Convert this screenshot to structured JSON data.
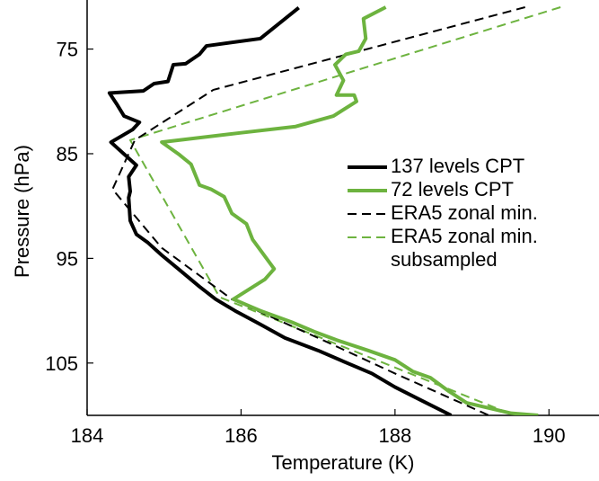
{
  "chart_data": {
    "type": "line",
    "x_label": "Temperature (K)",
    "y_label": "Pressure (hPa)",
    "xlim": [
      184,
      190.65
    ],
    "xticks": [
      184,
      186,
      188,
      190
    ],
    "ylim": [
      71,
      110
    ],
    "yticks": [
      75,
      85,
      95,
      105
    ],
    "y_inverted": true,
    "series": [
      {
        "name": "137 levels CPT",
        "color": "#000000",
        "style": "solid",
        "x": [
          186.75,
          186.25,
          185.55,
          185.46,
          185.28,
          185.12,
          185.05,
          184.87,
          184.73,
          184.29,
          184.38,
          184.48,
          184.68,
          184.59,
          184.31,
          184.64,
          184.54,
          184.56,
          184.54,
          184.56,
          184.64,
          184.79,
          184.97,
          185.2,
          185.46,
          185.67,
          185.92,
          186.25,
          186.57,
          187.0,
          187.41,
          187.7,
          188.0,
          188.35,
          188.73
        ],
        "y": [
          71.05,
          74.0,
          74.7,
          75.5,
          76.4,
          76.5,
          78.1,
          78.3,
          79.0,
          79.2,
          80.2,
          81.4,
          82.0,
          82.7,
          83.9,
          86.1,
          87.2,
          88.6,
          89.2,
          91.4,
          92.7,
          93.5,
          94.7,
          96.1,
          97.7,
          98.9,
          100.0,
          101.3,
          102.6,
          103.8,
          105.1,
          106.0,
          107.3,
          108.6,
          110.0
        ]
      },
      {
        "name": "72 levels CPT",
        "color": "#6db33f",
        "style": "solid",
        "x": [
          187.88,
          187.59,
          187.62,
          187.53,
          187.36,
          187.22,
          187.33,
          187.24,
          187.47,
          187.5,
          187.2,
          186.71,
          186.0,
          184.97,
          185.2,
          185.35,
          185.46,
          185.61,
          185.78,
          185.88,
          186.07,
          186.15,
          186.31,
          186.43,
          186.31,
          185.9,
          186.25,
          186.66,
          186.95,
          187.24,
          187.65,
          188.0,
          188.23,
          188.46,
          188.7,
          188.93,
          189.51,
          189.86
        ],
        "y": [
          71.0,
          72.1,
          74.0,
          75.2,
          75.5,
          76.5,
          78.0,
          79.4,
          79.4,
          80.0,
          81.4,
          82.4,
          83.0,
          83.9,
          85.1,
          86.0,
          88.0,
          88.4,
          89.1,
          90.7,
          91.7,
          93.2,
          94.8,
          96.0,
          97.0,
          98.9,
          100.0,
          101.1,
          102.0,
          102.8,
          103.8,
          104.7,
          105.8,
          106.4,
          107.7,
          108.8,
          109.8,
          110.0
        ]
      },
      {
        "name": "ERA5 zonal min.",
        "color": "#000000",
        "style": "dashed",
        "x": [
          189.69,
          185.64,
          184.62,
          184.33,
          184.97,
          185.88,
          187.06,
          188.0,
          189.22
        ],
        "y": [
          71.0,
          78.9,
          83.7,
          88.4,
          94.0,
          98.9,
          102.8,
          106.0,
          110.0
        ]
      },
      {
        "name": "ERA5 zonal min. subsampled",
        "color": "#6db33f",
        "style": "dashed",
        "x": [
          190.15,
          184.56,
          185.72,
          189.55
        ],
        "y": [
          71.0,
          83.7,
          98.7,
          110.0
        ]
      }
    ]
  }
}
